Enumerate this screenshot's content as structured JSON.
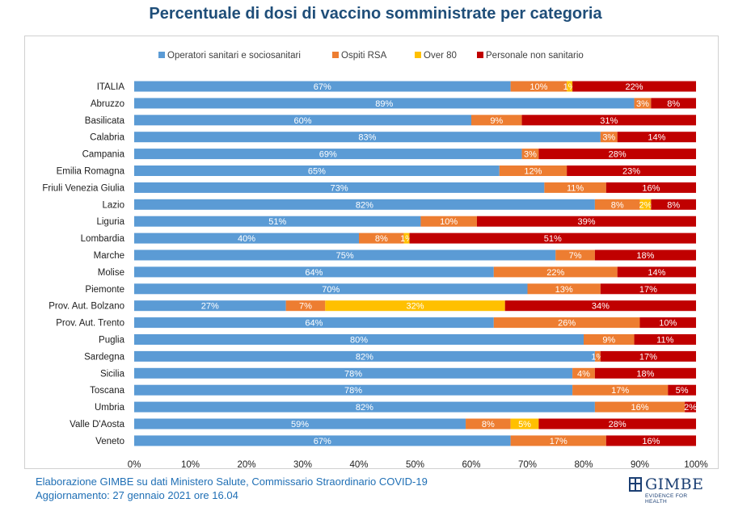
{
  "header": {
    "title": "Percentuale di dosi di vaccino somministrate per categoria"
  },
  "chart_data": {
    "type": "bar",
    "orientation": "horizontal",
    "stacked": true,
    "title": "Percentuale di dosi di vaccino somministrate per categoria",
    "categories": [
      "ITALIA",
      "Abruzzo",
      "Basilicata",
      "Calabria",
      "Campania",
      "Emilia Romagna",
      "Friuli Venezia Giulia",
      "Lazio",
      "Liguria",
      "Lombardia",
      "Marche",
      "Molise",
      "Piemonte",
      "Prov. Aut. Bolzano",
      "Prov. Aut. Trento",
      "Puglia",
      "Sardegna",
      "Sicilia",
      "Toscana",
      "Umbria",
      "Valle D'Aosta",
      "Veneto"
    ],
    "series": [
      {
        "name": "Operatori sanitari e sociosanitari",
        "color": "#5b9bd5",
        "values": [
          67,
          89,
          60,
          83,
          69,
          65,
          73,
          82,
          51,
          40,
          75,
          64,
          70,
          27,
          64,
          80,
          82,
          78,
          78,
          82,
          59,
          67
        ]
      },
      {
        "name": "Ospiti RSA",
        "color": "#ed7d31",
        "values": [
          10,
          3,
          9,
          3,
          3,
          12,
          11,
          8,
          10,
          8,
          7,
          22,
          13,
          7,
          26,
          9,
          1,
          4,
          17,
          16,
          8,
          17
        ]
      },
      {
        "name": "Over 80",
        "color": "#ffc000",
        "values": [
          1,
          0,
          0,
          0,
          0,
          0,
          0,
          2,
          0,
          1,
          0,
          0,
          0,
          32,
          0,
          0,
          0,
          0,
          0,
          0,
          5,
          0
        ]
      },
      {
        "name": "Personale non sanitario",
        "color": "#c00000",
        "values": [
          22,
          8,
          31,
          14,
          28,
          23,
          16,
          8,
          39,
          51,
          18,
          14,
          17,
          34,
          10,
          11,
          17,
          18,
          5,
          2,
          28,
          16
        ]
      }
    ],
    "xlim": [
      0,
      100
    ],
    "x_ticks": [
      "0%",
      "10%",
      "20%",
      "30%",
      "40%",
      "50%",
      "60%",
      "70%",
      "80%",
      "90%",
      "100%"
    ],
    "legend": "top",
    "grid": false
  },
  "footer": {
    "line1": "Elaborazione GIMBE su dati Ministero Salute, Commissario Straordinario COVID-19",
    "line2": "Aggiornamento: 27 gennaio 2021 ore 16.04"
  },
  "logo": {
    "name": "GIMBE",
    "tagline": "EVIDENCE FOR HEALTH",
    "icon": "gimbe-logo-icon"
  }
}
